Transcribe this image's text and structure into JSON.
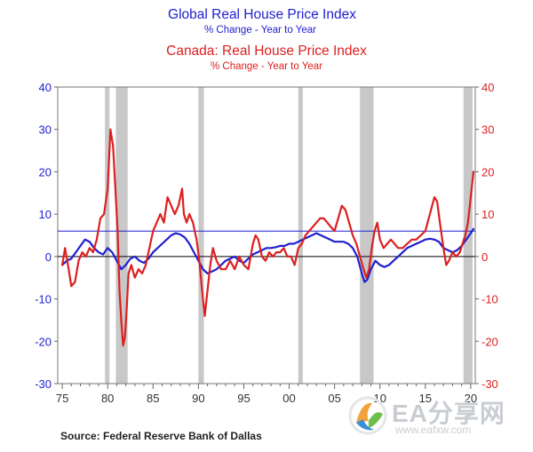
{
  "chart_data": {
    "type": "line",
    "title_global": "Global Real House Price Index",
    "subtitle_global": "% Change - Year to Year",
    "title_canada": "Canada: Real House Price Index",
    "subtitle_canada": "% Change - Year to Year",
    "source": "Source:  Federal Reserve Bank of Dallas",
    "xlim": [
      1975.5,
      2021.5
    ],
    "ylim": [
      -30,
      40
    ],
    "yticks": [
      -30,
      -20,
      -10,
      0,
      10,
      20,
      30,
      40
    ],
    "ytick_labels": [
      "-30",
      "-20",
      "-10",
      "0",
      "10",
      "20",
      "30",
      "40"
    ],
    "xtick_labels": [
      {
        "x": 1976,
        "label": "75"
      },
      {
        "x": 1981,
        "label": "80"
      },
      {
        "x": 1986,
        "label": "85"
      },
      {
        "x": 1991,
        "label": "90"
      },
      {
        "x": 1996,
        "label": "95"
      },
      {
        "x": 2001,
        "label": "00"
      },
      {
        "x": 2006,
        "label": "05"
      },
      {
        "x": 2011,
        "label": "10"
      },
      {
        "x": 2016,
        "label": "15"
      },
      {
        "x": 2021,
        "label": "20"
      }
    ],
    "minor_xticks": [
      1977,
      1978,
      1979,
      1980,
      1982,
      1983,
      1984,
      1985,
      1987,
      1988,
      1989,
      1990,
      1992,
      1993,
      1994,
      1995,
      1997,
      1998,
      1999,
      2000,
      2002,
      2003,
      2004,
      2005,
      2007,
      2008,
      2009,
      2010,
      2012,
      2013,
      2014,
      2015,
      2017,
      2018,
      2019,
      2020
    ],
    "recessions": [
      [
        1980.7,
        1981.2
      ],
      [
        1981.9,
        1983.2
      ],
      [
        1991.0,
        1991.6
      ],
      [
        2002.0,
        2002.5
      ],
      [
        2008.8,
        2010.3
      ],
      [
        2020.2,
        2021.2
      ]
    ],
    "reference_lines": [
      {
        "y": 0,
        "color": "#000000"
      },
      {
        "y": 6,
        "color": "#1f1fd0"
      }
    ],
    "series": [
      {
        "name": "Global Real House Price Index",
        "color": "#1f1fd0",
        "axis": "left",
        "x": [
          1976.0,
          1976.5,
          1977.0,
          1977.5,
          1978.0,
          1978.5,
          1979.0,
          1979.5,
          1980.0,
          1980.5,
          1981.0,
          1981.5,
          1982.0,
          1982.5,
          1983.0,
          1983.5,
          1984.0,
          1984.5,
          1985.0,
          1985.5,
          1986.0,
          1986.5,
          1987.0,
          1987.5,
          1988.0,
          1988.5,
          1989.0,
          1989.5,
          1990.0,
          1990.5,
          1991.0,
          1991.5,
          1992.0,
          1992.5,
          1993.0,
          1993.5,
          1994.0,
          1994.5,
          1995.0,
          1995.5,
          1996.0,
          1996.5,
          1997.0,
          1997.5,
          1998.0,
          1998.5,
          1999.0,
          1999.5,
          2000.0,
          2000.5,
          2001.0,
          2001.5,
          2002.0,
          2002.5,
          2003.0,
          2003.5,
          2004.0,
          2004.5,
          2005.0,
          2005.5,
          2006.0,
          2006.5,
          2007.0,
          2007.5,
          2008.0,
          2008.5,
          2009.0,
          2009.3,
          2009.6,
          2010.0,
          2010.5,
          2011.0,
          2011.5,
          2012.0,
          2012.5,
          2013.0,
          2013.5,
          2014.0,
          2014.5,
          2015.0,
          2015.5,
          2016.0,
          2016.5,
          2017.0,
          2017.5,
          2018.0,
          2018.5,
          2019.0,
          2019.5,
          2020.0,
          2020.5,
          2021.0,
          2021.3
        ],
        "values": [
          -2,
          -1,
          -0.5,
          1,
          2.5,
          4,
          3.5,
          2,
          1,
          0.5,
          2,
          1,
          -1,
          -3,
          -2,
          -0.5,
          0,
          -1,
          -1.5,
          -0.5,
          1,
          2,
          3,
          4,
          5,
          5.5,
          5.2,
          4.5,
          3,
          1,
          -1,
          -3,
          -4,
          -3.5,
          -3,
          -2,
          -1,
          -0.5,
          0,
          -1,
          -1.5,
          -0.5,
          0.5,
          1,
          1.5,
          2,
          2,
          2.2,
          2.5,
          2.5,
          3,
          3,
          3.5,
          4,
          4.5,
          5,
          5.5,
          5,
          4.5,
          4,
          3.5,
          3.5,
          3.5,
          3,
          2,
          0,
          -4,
          -6,
          -5.5,
          -3,
          -1,
          -2,
          -2.5,
          -2,
          -1,
          0,
          1,
          2,
          2.5,
          3,
          3.5,
          4,
          4.2,
          4,
          3.5,
          2,
          1.5,
          1,
          1.5,
          2.5,
          4,
          5.5,
          6.5
        ]
      },
      {
        "name": "Canada: Real House Price Index",
        "color": "#dd1f1f",
        "axis": "right",
        "x": [
          1976.0,
          1976.3,
          1976.7,
          1977.0,
          1977.4,
          1977.8,
          1978.2,
          1978.6,
          1979.0,
          1979.4,
          1979.8,
          1980.2,
          1980.6,
          1981.0,
          1981.3,
          1981.6,
          1981.9,
          1982.1,
          1982.3,
          1982.5,
          1982.7,
          1982.9,
          1983.1,
          1983.3,
          1983.6,
          1984.0,
          1984.4,
          1984.8,
          1985.2,
          1985.6,
          1986.0,
          1986.4,
          1986.8,
          1987.2,
          1987.6,
          1988.0,
          1988.4,
          1988.8,
          1989.2,
          1989.4,
          1989.7,
          1990.0,
          1990.4,
          1990.8,
          1991.1,
          1991.4,
          1991.7,
          1992.0,
          1992.3,
          1992.6,
          1993.0,
          1993.5,
          1994.0,
          1994.5,
          1995.0,
          1995.5,
          1996.0,
          1996.5,
          1997.0,
          1997.3,
          1997.6,
          1998.0,
          1998.4,
          1998.8,
          1999.2,
          1999.6,
          2000.0,
          2000.4,
          2000.8,
          2001.2,
          2001.6,
          2002.0,
          2002.4,
          2002.8,
          2003.2,
          2003.6,
          2004.0,
          2004.4,
          2004.8,
          2005.2,
          2005.6,
          2006.0,
          2006.4,
          2006.8,
          2007.2,
          2007.6,
          2008.0,
          2008.4,
          2008.8,
          2009.2,
          2009.5,
          2009.8,
          2010.1,
          2010.4,
          2010.7,
          2011.0,
          2011.4,
          2011.8,
          2012.2,
          2012.6,
          2013.0,
          2013.5,
          2014.0,
          2014.5,
          2015.0,
          2015.5,
          2016.0,
          2016.5,
          2017.0,
          2017.3,
          2017.6,
          2018.0,
          2018.3,
          2018.6,
          2019.0,
          2019.4,
          2019.8,
          2020.1,
          2020.4,
          2020.7,
          2021.0,
          2021.3
        ],
        "values": [
          -2,
          2,
          -3,
          -7,
          -6,
          -1,
          1,
          0,
          2,
          1,
          4,
          9,
          10,
          16,
          30,
          26,
          14,
          6,
          -8,
          -15,
          -21,
          -19,
          -12,
          -4,
          -2,
          -5,
          -3,
          -4,
          -2,
          2,
          6,
          8,
          10,
          8,
          14,
          12,
          10,
          12,
          16,
          10,
          8,
          10,
          8,
          4,
          -1,
          -8,
          -14,
          -8,
          -2,
          2,
          -1,
          -3,
          -3,
          -1,
          -3,
          0,
          -2,
          -3,
          3,
          5,
          4,
          0,
          -1,
          1,
          0,
          1,
          1,
          2,
          0,
          0,
          -2,
          2,
          3,
          5,
          6,
          7,
          8,
          9,
          9,
          8,
          7,
          6,
          9,
          12,
          11,
          8,
          5,
          3,
          0,
          -3,
          -5,
          -3,
          2,
          6,
          8,
          4,
          2,
          3,
          4,
          3,
          2,
          2,
          3,
          4,
          4,
          5,
          6,
          10,
          14,
          13,
          8,
          2,
          -2,
          -1,
          1,
          0,
          1,
          3,
          5,
          8,
          14,
          20
        ]
      }
    ]
  },
  "watermark": {
    "title": "EA分享网",
    "url": "www.eafxw.com",
    "colors": {
      "orange": "#f3a23a",
      "green": "#6cbf4a",
      "blue": "#3b8fd6"
    }
  }
}
